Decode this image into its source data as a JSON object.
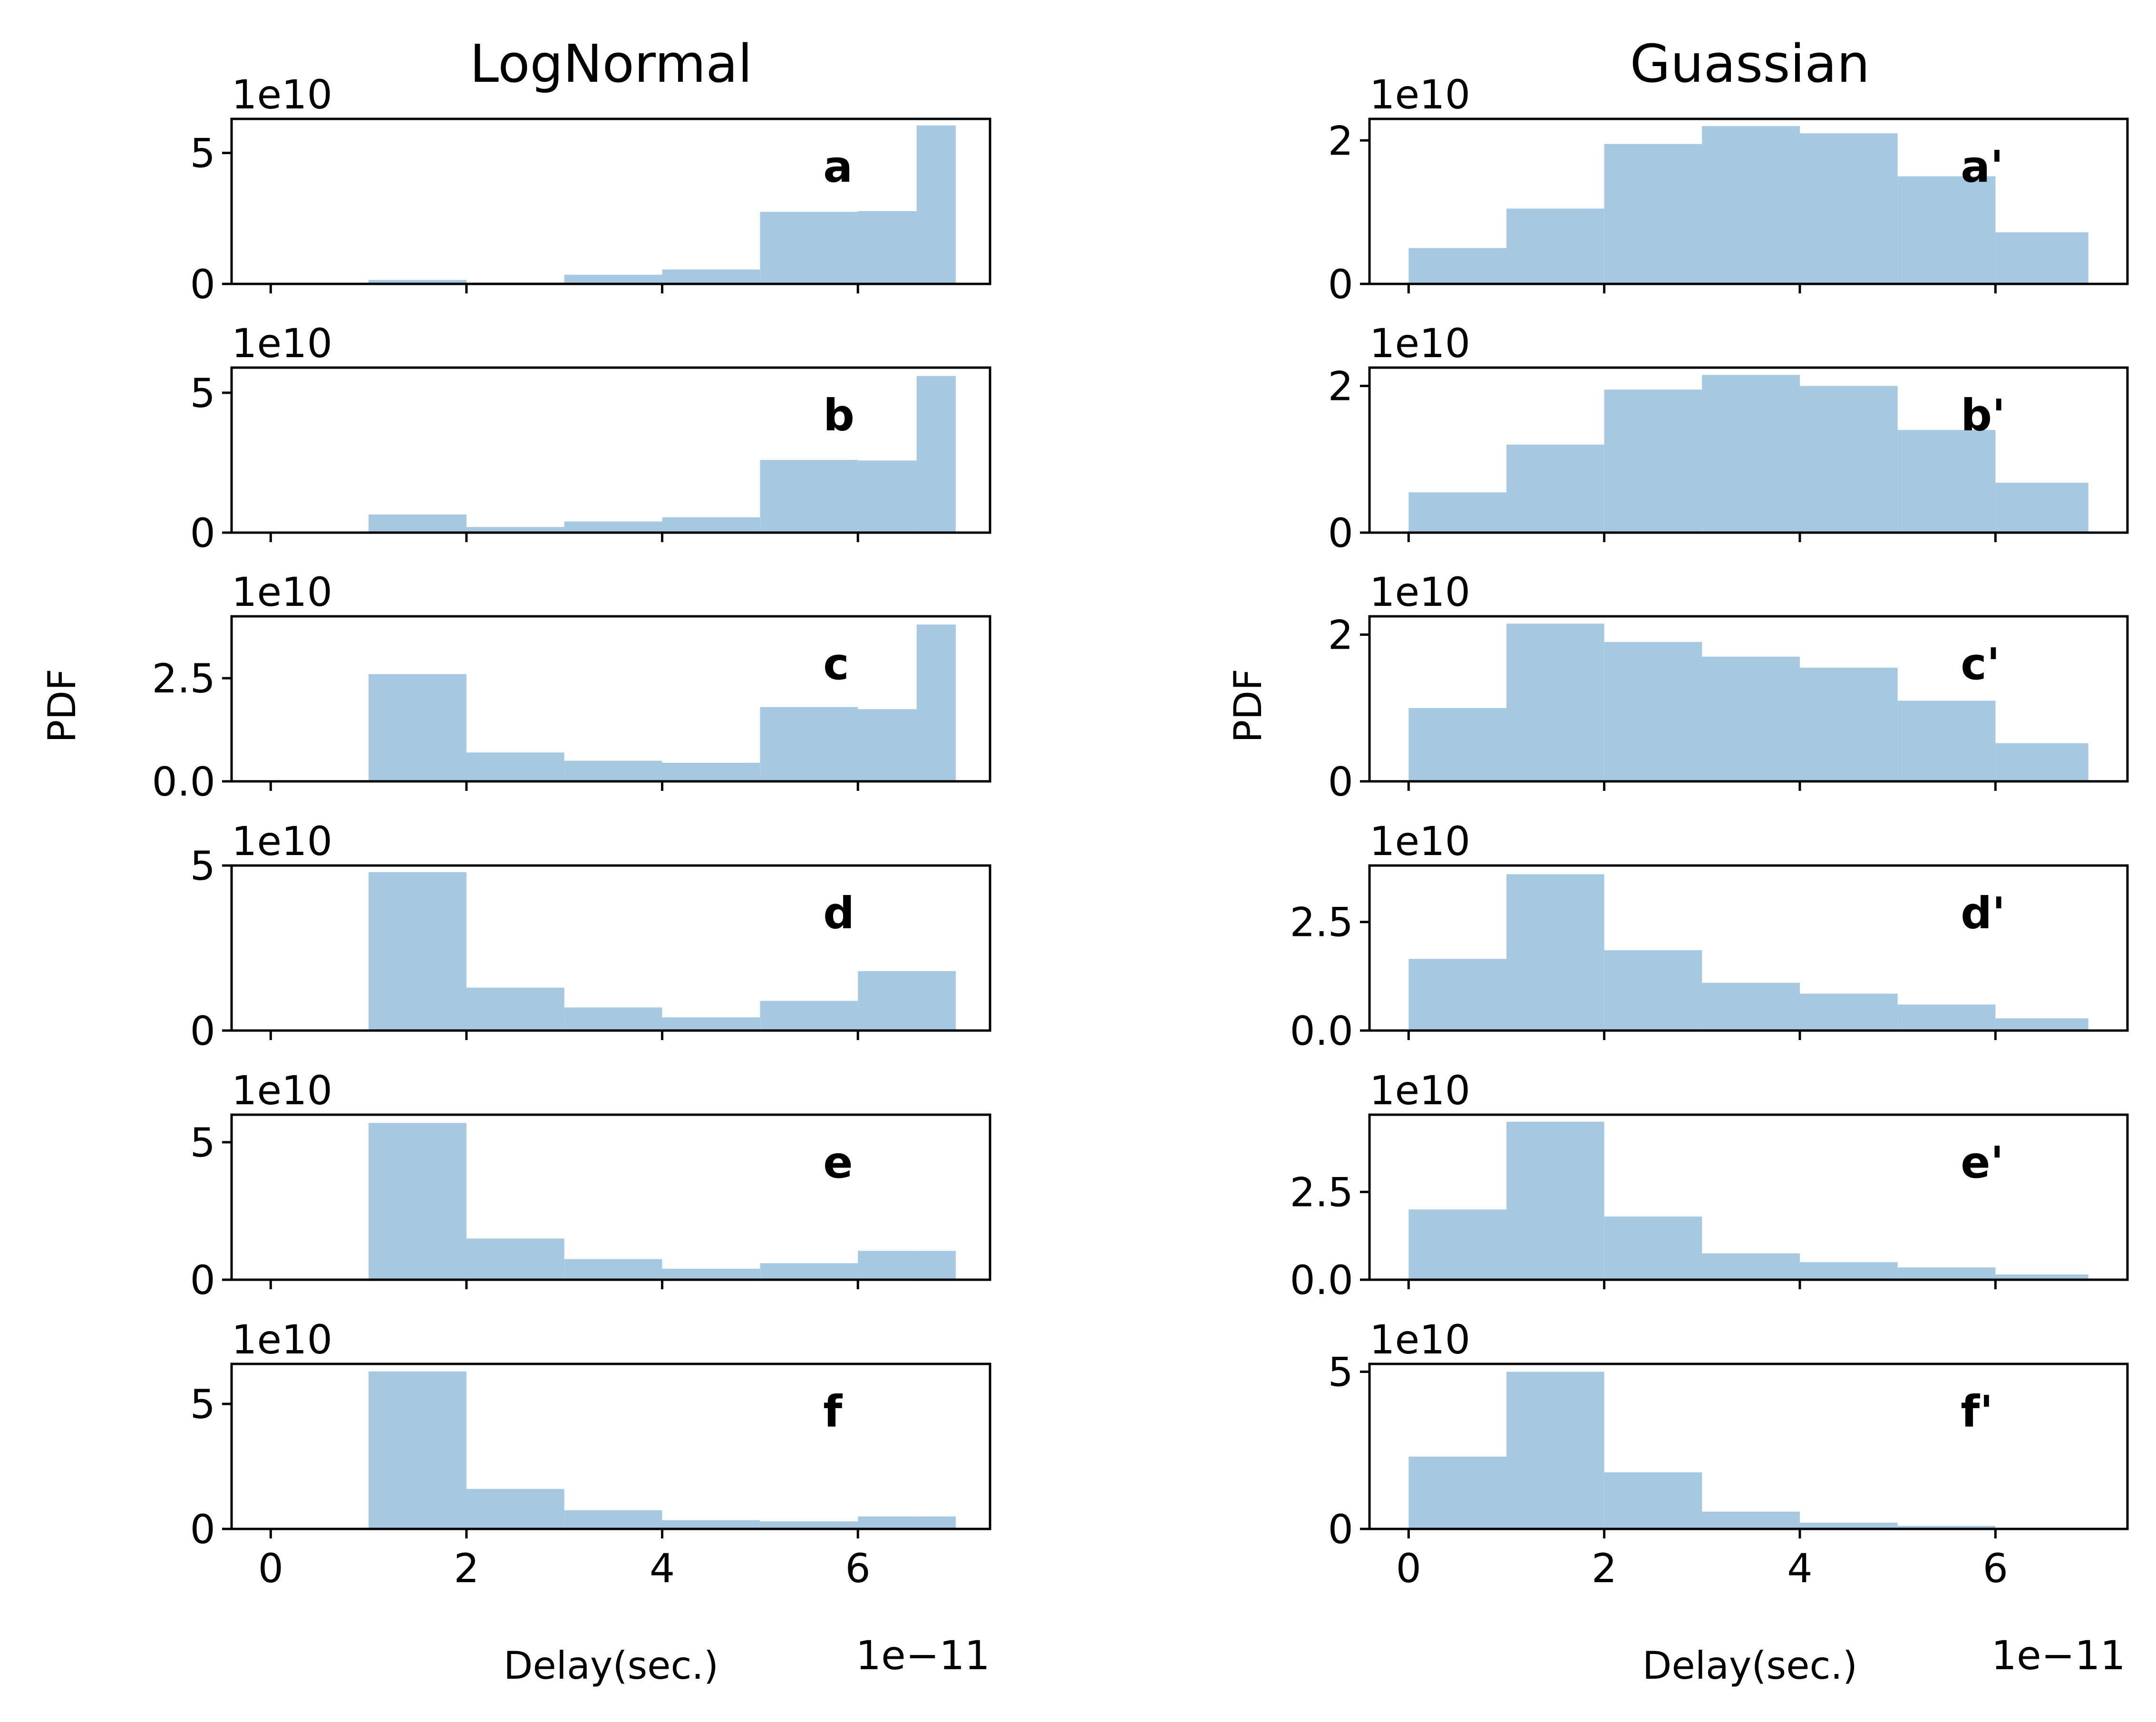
{
  "colors": {
    "bar": "#a6c8e0",
    "axis": "#000000",
    "background": "#ffffff"
  },
  "chart_data": [
    {
      "type": "histogram-grid",
      "column": "left",
      "title": "LogNormal",
      "xlabel": "Delay(sec.)",
      "ylabel": "PDF",
      "x_offset_label": "1e−11",
      "xlim": [
        -0.4,
        7.35
      ],
      "xticks": [
        0,
        2,
        4,
        6
      ],
      "xtick_labels": [
        "0",
        "2",
        "4",
        "6"
      ],
      "bin_edges": [
        0,
        1,
        2,
        3,
        4,
        5,
        6,
        6.6,
        7
      ],
      "grid": false,
      "panels": [
        {
          "label": "a",
          "y_offset_label": "1e10",
          "ylim": [
            0,
            6.3
          ],
          "yticks": [
            0,
            5
          ],
          "ytick_labels": [
            "0",
            "5"
          ],
          "values": [
            0,
            0.15,
            0.05,
            0.35,
            0.55,
            2.75,
            2.78,
            6.05
          ]
        },
        {
          "label": "b",
          "y_offset_label": "1e10",
          "ylim": [
            0,
            5.9
          ],
          "yticks": [
            0,
            5
          ],
          "ytick_labels": [
            "0",
            "5"
          ],
          "values": [
            0,
            0.65,
            0.2,
            0.4,
            0.55,
            2.6,
            2.58,
            5.6
          ]
        },
        {
          "label": "c",
          "y_offset_label": "1e10",
          "ylim": [
            0,
            4.0
          ],
          "yticks": [
            0,
            2.5
          ],
          "ytick_labels": [
            "0.0",
            "2.5"
          ],
          "values": [
            0,
            2.6,
            0.7,
            0.5,
            0.45,
            1.8,
            1.75,
            3.8
          ]
        },
        {
          "label": "d",
          "y_offset_label": "1e10",
          "ylim": [
            0,
            5.0
          ],
          "yticks": [
            0,
            5
          ],
          "ytick_labels": [
            "0",
            "5"
          ],
          "values": [
            0,
            4.8,
            1.3,
            0.7,
            0.4,
            0.9,
            1.8,
            1.8
          ]
        },
        {
          "label": "e",
          "y_offset_label": "1e10",
          "ylim": [
            0,
            6.0
          ],
          "yticks": [
            0,
            5
          ],
          "ytick_labels": [
            "0",
            "5"
          ],
          "values": [
            0,
            5.7,
            1.5,
            0.75,
            0.4,
            0.6,
            1.05,
            1.05
          ]
        },
        {
          "label": "f",
          "y_offset_label": "1e10",
          "ylim": [
            0,
            6.6
          ],
          "yticks": [
            0,
            5
          ],
          "ytick_labels": [
            "0",
            "5"
          ],
          "values": [
            0,
            6.3,
            1.6,
            0.75,
            0.35,
            0.3,
            0.5,
            0.5
          ]
        }
      ]
    },
    {
      "type": "histogram-grid",
      "column": "right",
      "title": "Guassian",
      "xlabel": "Delay(sec.)",
      "ylabel": "PDF",
      "x_offset_label": "1e−11",
      "xlim": [
        -0.4,
        7.35
      ],
      "xticks": [
        0,
        2,
        4,
        6
      ],
      "xtick_labels": [
        "0",
        "2",
        "4",
        "6"
      ],
      "bin_edges": [
        0,
        1,
        2,
        3,
        4,
        5,
        6,
        6.95
      ],
      "grid": false,
      "panels": [
        {
          "label": "a'",
          "y_offset_label": "1e10",
          "ylim": [
            0,
            2.3
          ],
          "yticks": [
            0,
            2
          ],
          "ytick_labels": [
            "0",
            "2"
          ],
          "values": [
            0.5,
            1.05,
            1.95,
            2.2,
            2.1,
            1.5,
            0.72
          ]
        },
        {
          "label": "b'",
          "y_offset_label": "1e10",
          "ylim": [
            0,
            2.25
          ],
          "yticks": [
            0,
            2
          ],
          "ytick_labels": [
            "0",
            "2"
          ],
          "values": [
            0.55,
            1.2,
            1.95,
            2.15,
            2.0,
            1.4,
            0.68
          ]
        },
        {
          "label": "c'",
          "y_offset_label": "1e10",
          "ylim": [
            0,
            2.25
          ],
          "yticks": [
            0,
            2
          ],
          "ytick_labels": [
            "0",
            "2"
          ],
          "values": [
            1.0,
            2.15,
            1.9,
            1.7,
            1.55,
            1.1,
            0.52
          ]
        },
        {
          "label": "d'",
          "y_offset_label": "1e10",
          "ylim": [
            0,
            3.8
          ],
          "yticks": [
            0,
            2.5
          ],
          "ytick_labels": [
            "0.0",
            "2.5"
          ],
          "values": [
            1.65,
            3.6,
            1.85,
            1.1,
            0.85,
            0.6,
            0.28
          ]
        },
        {
          "label": "e'",
          "y_offset_label": "1e10",
          "ylim": [
            0,
            4.7
          ],
          "yticks": [
            0,
            2.5
          ],
          "ytick_labels": [
            "0.0",
            "2.5"
          ],
          "values": [
            2.0,
            4.5,
            1.8,
            0.75,
            0.5,
            0.35,
            0.15
          ]
        },
        {
          "label": "f'",
          "y_offset_label": "1e10",
          "ylim": [
            0,
            5.25
          ],
          "yticks": [
            0,
            5
          ],
          "ytick_labels": [
            "0",
            "5"
          ],
          "values": [
            2.3,
            5.0,
            1.8,
            0.55,
            0.2,
            0.1,
            0
          ]
        }
      ]
    }
  ]
}
